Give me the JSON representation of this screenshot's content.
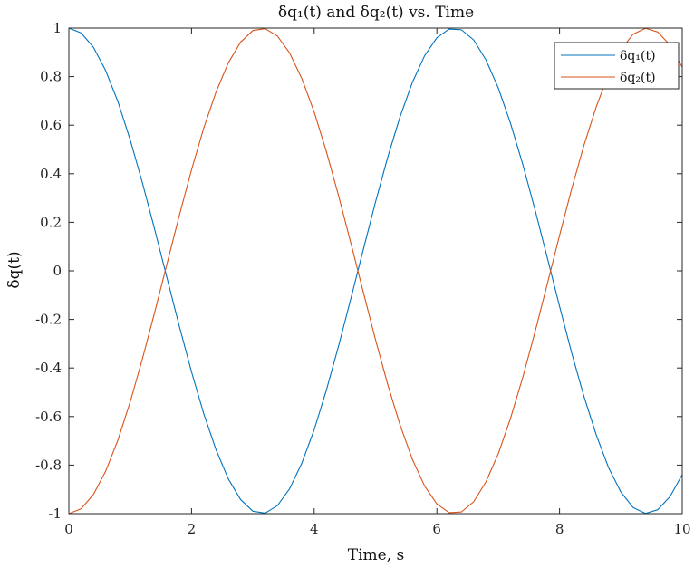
{
  "chart_data": {
    "type": "line",
    "title": "δq₁(t) and δq₂(t) vs. Time",
    "xlabel": "Time, s",
    "ylabel": "δq(t)",
    "xlim": [
      0,
      10
    ],
    "ylim": [
      -1,
      1
    ],
    "x_ticks": [
      0,
      2,
      4,
      6,
      8,
      10
    ],
    "x_tick_labels": [
      "0",
      "2",
      "4",
      "6",
      "8",
      "10"
    ],
    "y_ticks": [
      -1,
      -0.8,
      -0.6,
      -0.4,
      -0.2,
      0,
      0.2,
      0.4,
      0.6,
      0.8,
      1
    ],
    "y_tick_labels": [
      "-1",
      "-0.8",
      "-0.6",
      "-0.4",
      "-0.2",
      "0",
      "0.2",
      "0.4",
      "0.6",
      "0.8",
      "1"
    ],
    "grid": false,
    "legend_position": "top-right",
    "x": [
      0.0,
      0.2,
      0.4,
      0.6,
      0.8,
      1.0,
      1.2,
      1.4,
      1.6,
      1.8,
      2.0,
      2.2,
      2.4,
      2.6,
      2.8,
      3.0,
      3.2,
      3.4,
      3.6,
      3.8,
      4.0,
      4.2,
      4.4,
      4.6,
      4.8,
      5.0,
      5.2,
      5.4,
      5.6,
      5.8,
      6.0,
      6.2,
      6.4,
      6.6,
      6.8,
      7.0,
      7.2,
      7.4,
      7.6,
      7.8,
      8.0,
      8.2,
      8.4,
      8.6,
      8.8,
      9.0,
      9.2,
      9.4,
      9.6,
      9.8,
      10.0
    ],
    "series": [
      {
        "name": "δq₁(t)",
        "color": "#0072BD",
        "values": [
          1.0,
          0.98,
          0.921,
          0.825,
          0.697,
          0.54,
          0.362,
          0.17,
          -0.029,
          -0.227,
          -0.416,
          -0.589,
          -0.737,
          -0.857,
          -0.942,
          -0.99,
          -0.998,
          -0.967,
          -0.897,
          -0.791,
          -0.654,
          -0.49,
          -0.307,
          -0.112,
          0.087,
          0.284,
          0.469,
          0.635,
          0.776,
          0.886,
          0.96,
          0.996,
          0.993,
          0.951,
          0.869,
          0.754,
          0.608,
          0.439,
          0.252,
          0.054,
          -0.146,
          -0.34,
          -0.519,
          -0.677,
          -0.811,
          -0.911,
          -0.975,
          -0.999,
          -0.984,
          -0.93,
          -0.839
        ]
      },
      {
        "name": "δq₂(t)",
        "color": "#D95319",
        "values": [
          -1.0,
          -0.98,
          -0.921,
          -0.825,
          -0.697,
          -0.54,
          -0.362,
          -0.17,
          0.029,
          0.227,
          0.416,
          0.589,
          0.737,
          0.857,
          0.942,
          0.99,
          0.998,
          0.967,
          0.897,
          0.791,
          0.654,
          0.49,
          0.307,
          0.112,
          -0.087,
          -0.284,
          -0.469,
          -0.635,
          -0.776,
          -0.886,
          -0.96,
          -0.996,
          -0.993,
          -0.951,
          -0.869,
          -0.754,
          -0.608,
          -0.439,
          -0.252,
          -0.054,
          0.146,
          0.34,
          0.519,
          0.677,
          0.811,
          0.911,
          0.975,
          0.999,
          0.984,
          0.93,
          0.839
        ]
      }
    ]
  }
}
